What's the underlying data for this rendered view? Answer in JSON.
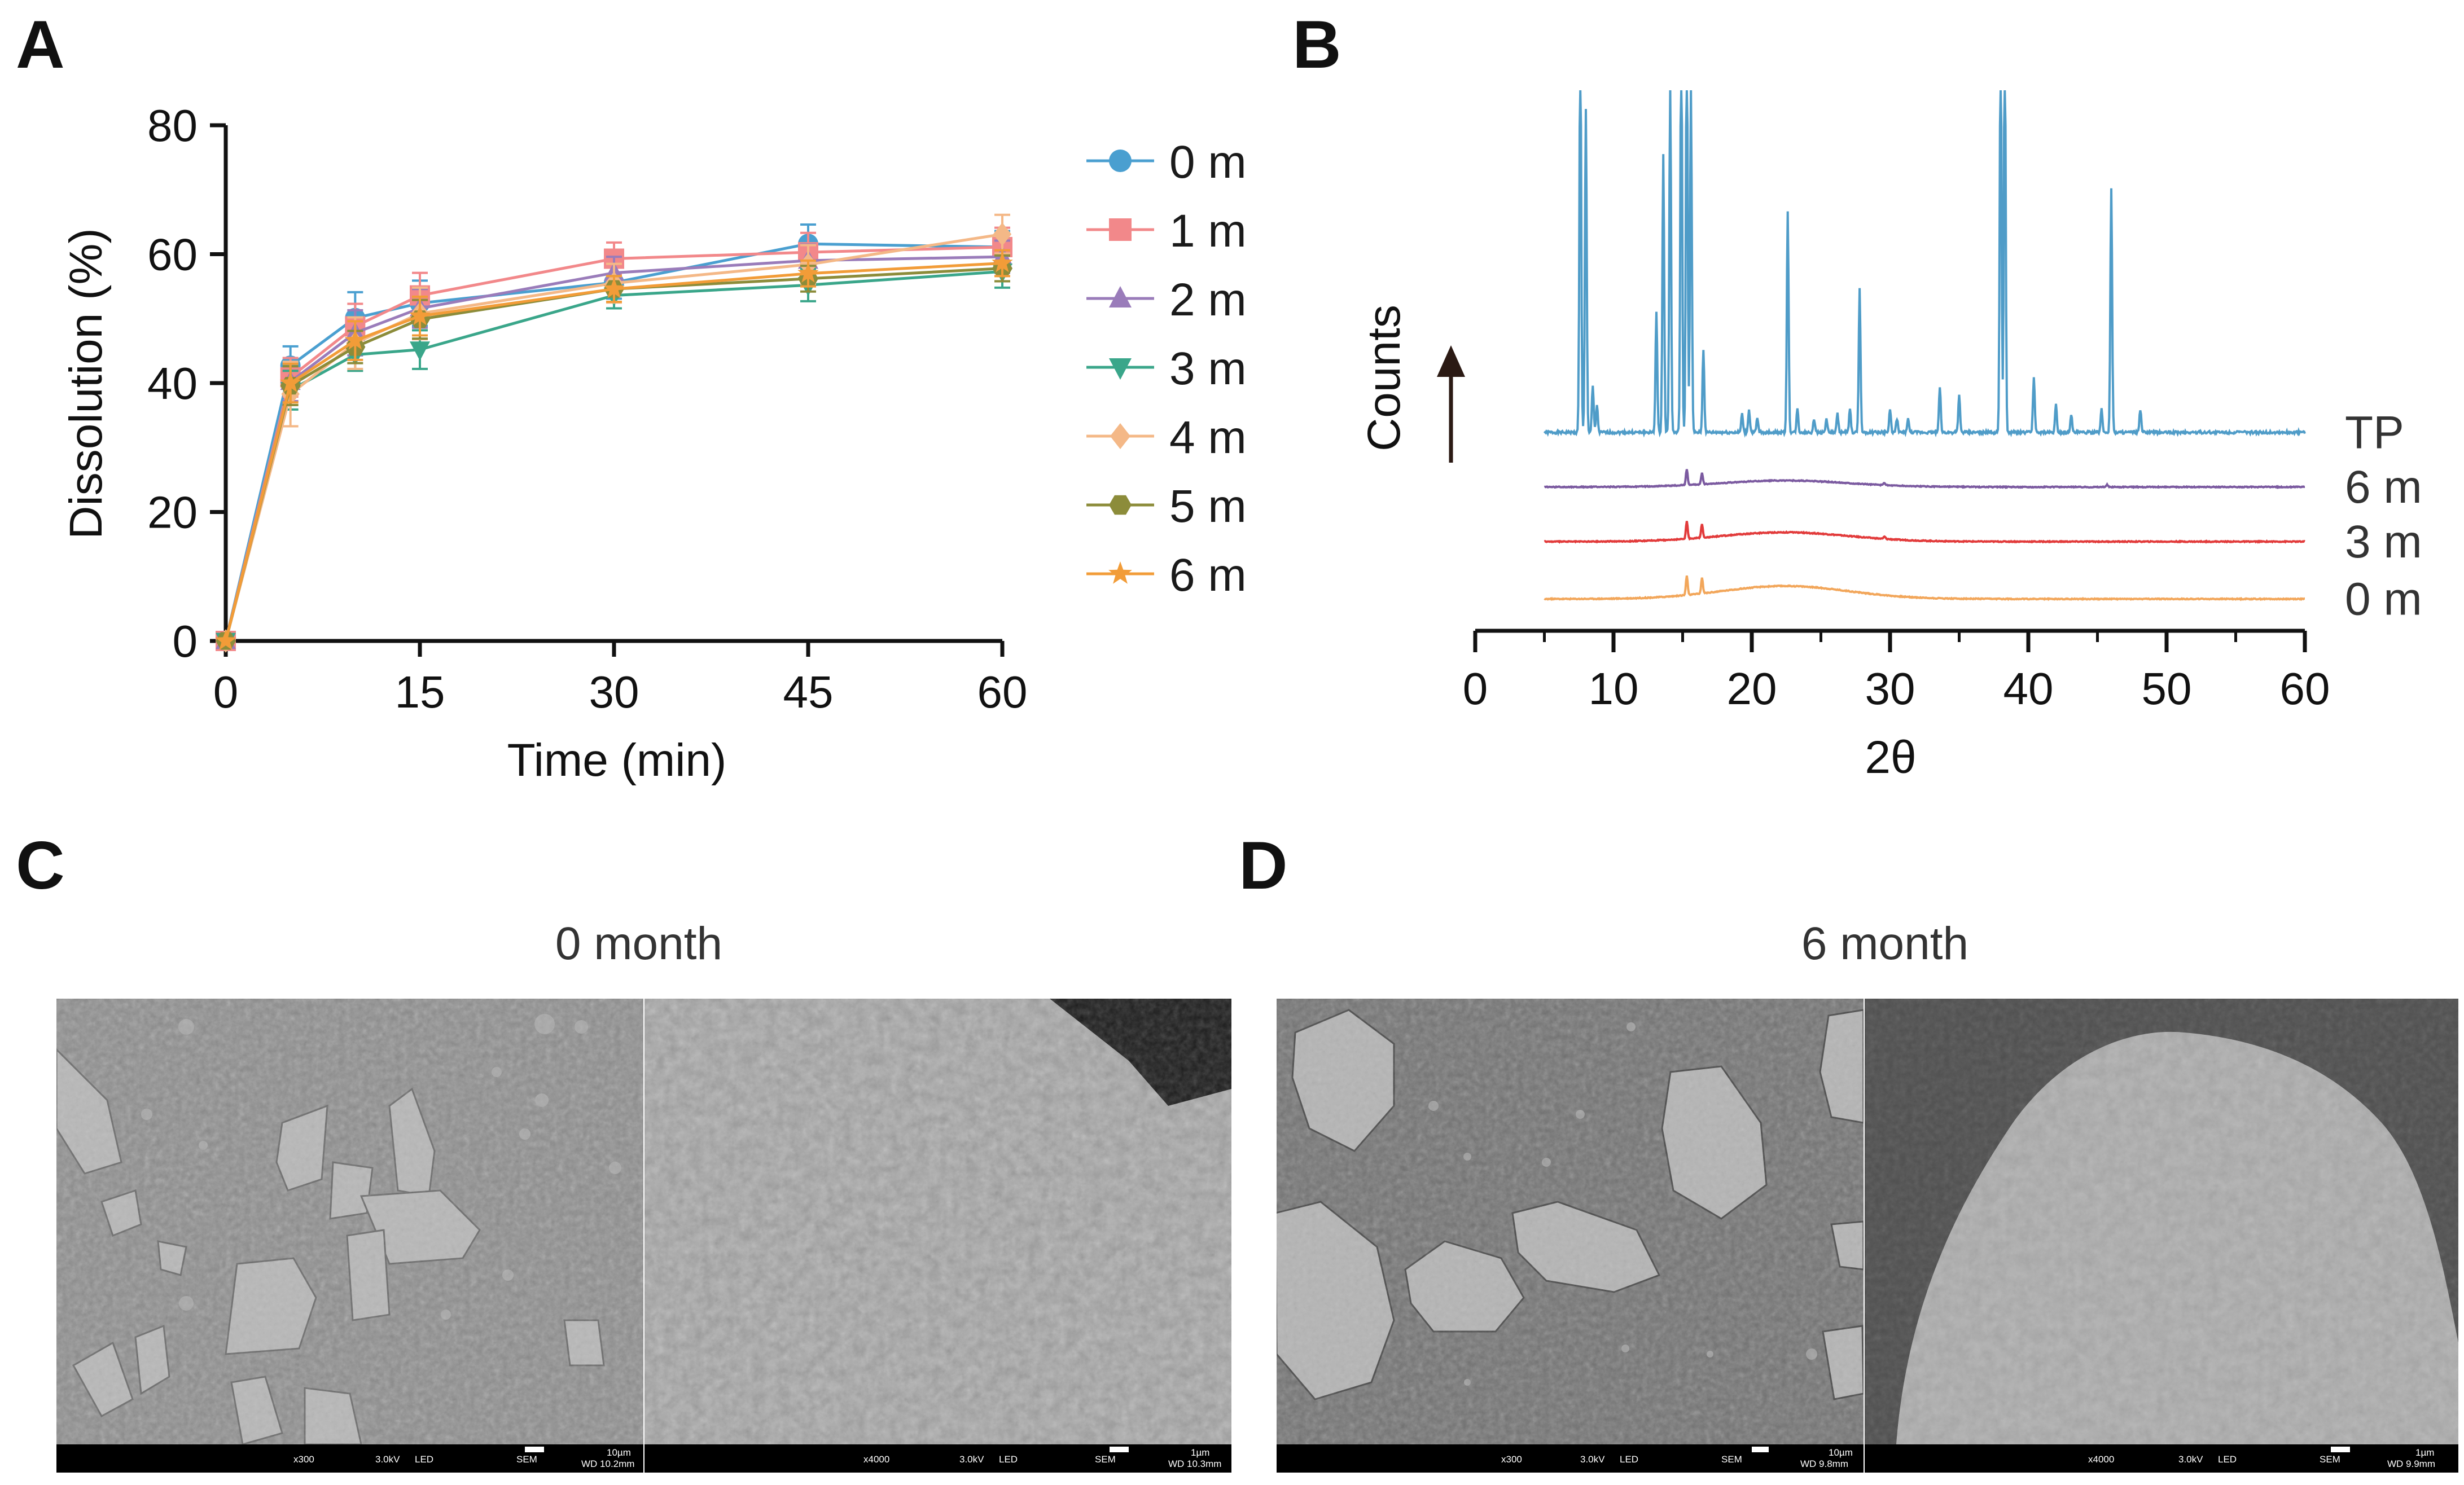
{
  "panels": {
    "A": {
      "letter": "A"
    },
    "B": {
      "letter": "B"
    },
    "C": {
      "letter": "C",
      "title": "0 month",
      "sem_left": {
        "mag": "x300",
        "kv": "3.0kV",
        "mode": "LED",
        "det": "SEM",
        "scale": "10µm",
        "wd": "WD 10.2mm"
      },
      "sem_right": {
        "mag": "x4000",
        "kv": "3.0kV",
        "mode": "LED",
        "det": "SEM",
        "scale": "1µm",
        "wd": "WD 10.3mm"
      }
    },
    "D": {
      "letter": "D",
      "title": "6 month",
      "sem_left": {
        "mag": "x300",
        "kv": "3.0kV",
        "mode": "LED",
        "det": "SEM",
        "scale": "10µm",
        "wd": "WD 9.8mm"
      },
      "sem_right": {
        "mag": "x4000",
        "kv": "3.0kV",
        "mode": "LED",
        "det": "SEM",
        "scale": "1µm",
        "wd": "WD 9.9mm"
      }
    }
  },
  "chart_data": [
    {
      "panel": "A",
      "type": "line",
      "xlabel": "Time (min)",
      "ylabel": "Dissolution (%)",
      "xlim": [
        0,
        60
      ],
      "ylim": [
        0,
        80
      ],
      "xticks": [
        "0",
        "15",
        "30",
        "45",
        "60"
      ],
      "yticks": [
        "0",
        "20",
        "40",
        "60",
        "80"
      ],
      "x": [
        0,
        5,
        10,
        15,
        30,
        45,
        60
      ],
      "legend_position": "right",
      "series": [
        {
          "name": "0 m",
          "marker": "circle",
          "color": "#4a9fd0",
          "values": [
            0,
            42.7,
            50.1,
            52.4,
            55.6,
            61.6,
            61.1
          ],
          "error": [
            0,
            3.0,
            4.0,
            3.5,
            2.5,
            3.0,
            2.5
          ]
        },
        {
          "name": "1 m",
          "marker": "square",
          "color": "#f2888a",
          "values": [
            0,
            40.9,
            48.8,
            53.6,
            59.3,
            60.3,
            61.1
          ],
          "error": [
            0,
            3.0,
            3.5,
            3.5,
            2.5,
            3.0,
            3.0
          ]
        },
        {
          "name": "2 m",
          "marker": "triangle",
          "color": "#9a7cba",
          "values": [
            0,
            40.2,
            47.8,
            51.6,
            57.1,
            59.0,
            59.6
          ],
          "error": [
            0,
            3.0,
            3.5,
            3.0,
            2.5,
            2.5,
            2.5
          ]
        },
        {
          "name": "3 m",
          "marker": "tri-down",
          "color": "#3aa68a",
          "values": [
            0,
            38.9,
            44.4,
            45.2,
            53.6,
            55.2,
            57.3
          ],
          "error": [
            0,
            3.0,
            2.5,
            3.0,
            2.0,
            2.5,
            2.5
          ]
        },
        {
          "name": "4 m",
          "marker": "diamond",
          "color": "#f4b887",
          "values": [
            0,
            38.3,
            46.2,
            50.8,
            55.5,
            58.4,
            63.1
          ],
          "error": [
            0,
            5.0,
            4.0,
            4.0,
            3.0,
            3.0,
            3.0
          ]
        },
        {
          "name": "5 m",
          "marker": "hexagon",
          "color": "#8c8c3a",
          "values": [
            0,
            39.6,
            45.6,
            49.9,
            54.6,
            56.2,
            57.8
          ],
          "error": [
            0,
            3.0,
            2.5,
            3.0,
            2.0,
            2.0,
            2.0
          ]
        },
        {
          "name": "6 m",
          "marker": "star",
          "color": "#f29c38",
          "values": [
            0,
            40.0,
            46.6,
            50.4,
            54.6,
            57.0,
            58.6
          ],
          "error": [
            0,
            3.0,
            3.0,
            3.0,
            2.0,
            2.0,
            2.0
          ]
        }
      ],
      "legend_label_colors": {
        "text": "#1a1a1a"
      }
    },
    {
      "panel": "B",
      "type": "line",
      "xlabel": "2θ",
      "ylabel": "Counts",
      "xlim": [
        0,
        60
      ],
      "xticks": [
        "0",
        "10",
        "20",
        "30",
        "40",
        "50",
        "60"
      ],
      "series": [
        {
          "name": "TP",
          "color": "#4f9cc8",
          "baseline": 3.8,
          "noise": 0.06,
          "peaks": [
            [
              7.6,
              9.0
            ],
            [
              8.0,
              7.0
            ],
            [
              8.5,
              1.0
            ],
            [
              8.8,
              0.6
            ],
            [
              13.1,
              2.6
            ],
            [
              13.6,
              6.0
            ],
            [
              14.1,
              7.5
            ],
            [
              14.9,
              9.0
            ],
            [
              15.3,
              9.0
            ],
            [
              15.6,
              7.5
            ],
            [
              16.5,
              1.8
            ],
            [
              19.3,
              0.4
            ],
            [
              19.8,
              0.5
            ],
            [
              20.4,
              0.3
            ],
            [
              22.6,
              4.8
            ],
            [
              23.3,
              0.5
            ],
            [
              24.5,
              0.3
            ],
            [
              25.4,
              0.3
            ],
            [
              26.2,
              0.4
            ],
            [
              27.1,
              0.5
            ],
            [
              27.8,
              3.1
            ],
            [
              30.0,
              0.5
            ],
            [
              30.5,
              0.3
            ],
            [
              31.3,
              0.3
            ],
            [
              33.6,
              1.0
            ],
            [
              35.0,
              0.8
            ],
            [
              38.0,
              9.0
            ],
            [
              38.3,
              9.0
            ],
            [
              40.4,
              1.2
            ],
            [
              42.0,
              0.6
            ],
            [
              43.1,
              0.4
            ],
            [
              45.3,
              0.5
            ],
            [
              46.0,
              5.3
            ],
            [
              48.1,
              0.5
            ]
          ]
        },
        {
          "name": "6 m",
          "color": "#7b5aa0",
          "baseline": 2.62,
          "noise": 0.02,
          "hump": [
            22.4,
            0.14,
            6.5
          ],
          "peaks": [
            [
              15.3,
              0.35
            ],
            [
              16.4,
              0.25
            ],
            [
              29.6,
              0.05
            ],
            [
              45.7,
              0.05
            ]
          ]
        },
        {
          "name": "3 m",
          "color": "#e23b3b",
          "baseline": 1.44,
          "noise": 0.02,
          "hump": [
            22.4,
            0.2,
            6.5
          ],
          "peaks": [
            [
              15.3,
              0.38
            ],
            [
              16.4,
              0.3
            ],
            [
              29.6,
              0.05
            ]
          ]
        },
        {
          "name": "0 m",
          "color": "#f2a65a",
          "baseline": 0.2,
          "noise": 0.02,
          "hump": [
            22.4,
            0.28,
            6.5
          ],
          "peaks": [
            [
              15.3,
              0.42
            ],
            [
              16.4,
              0.34
            ]
          ]
        }
      ]
    }
  ]
}
